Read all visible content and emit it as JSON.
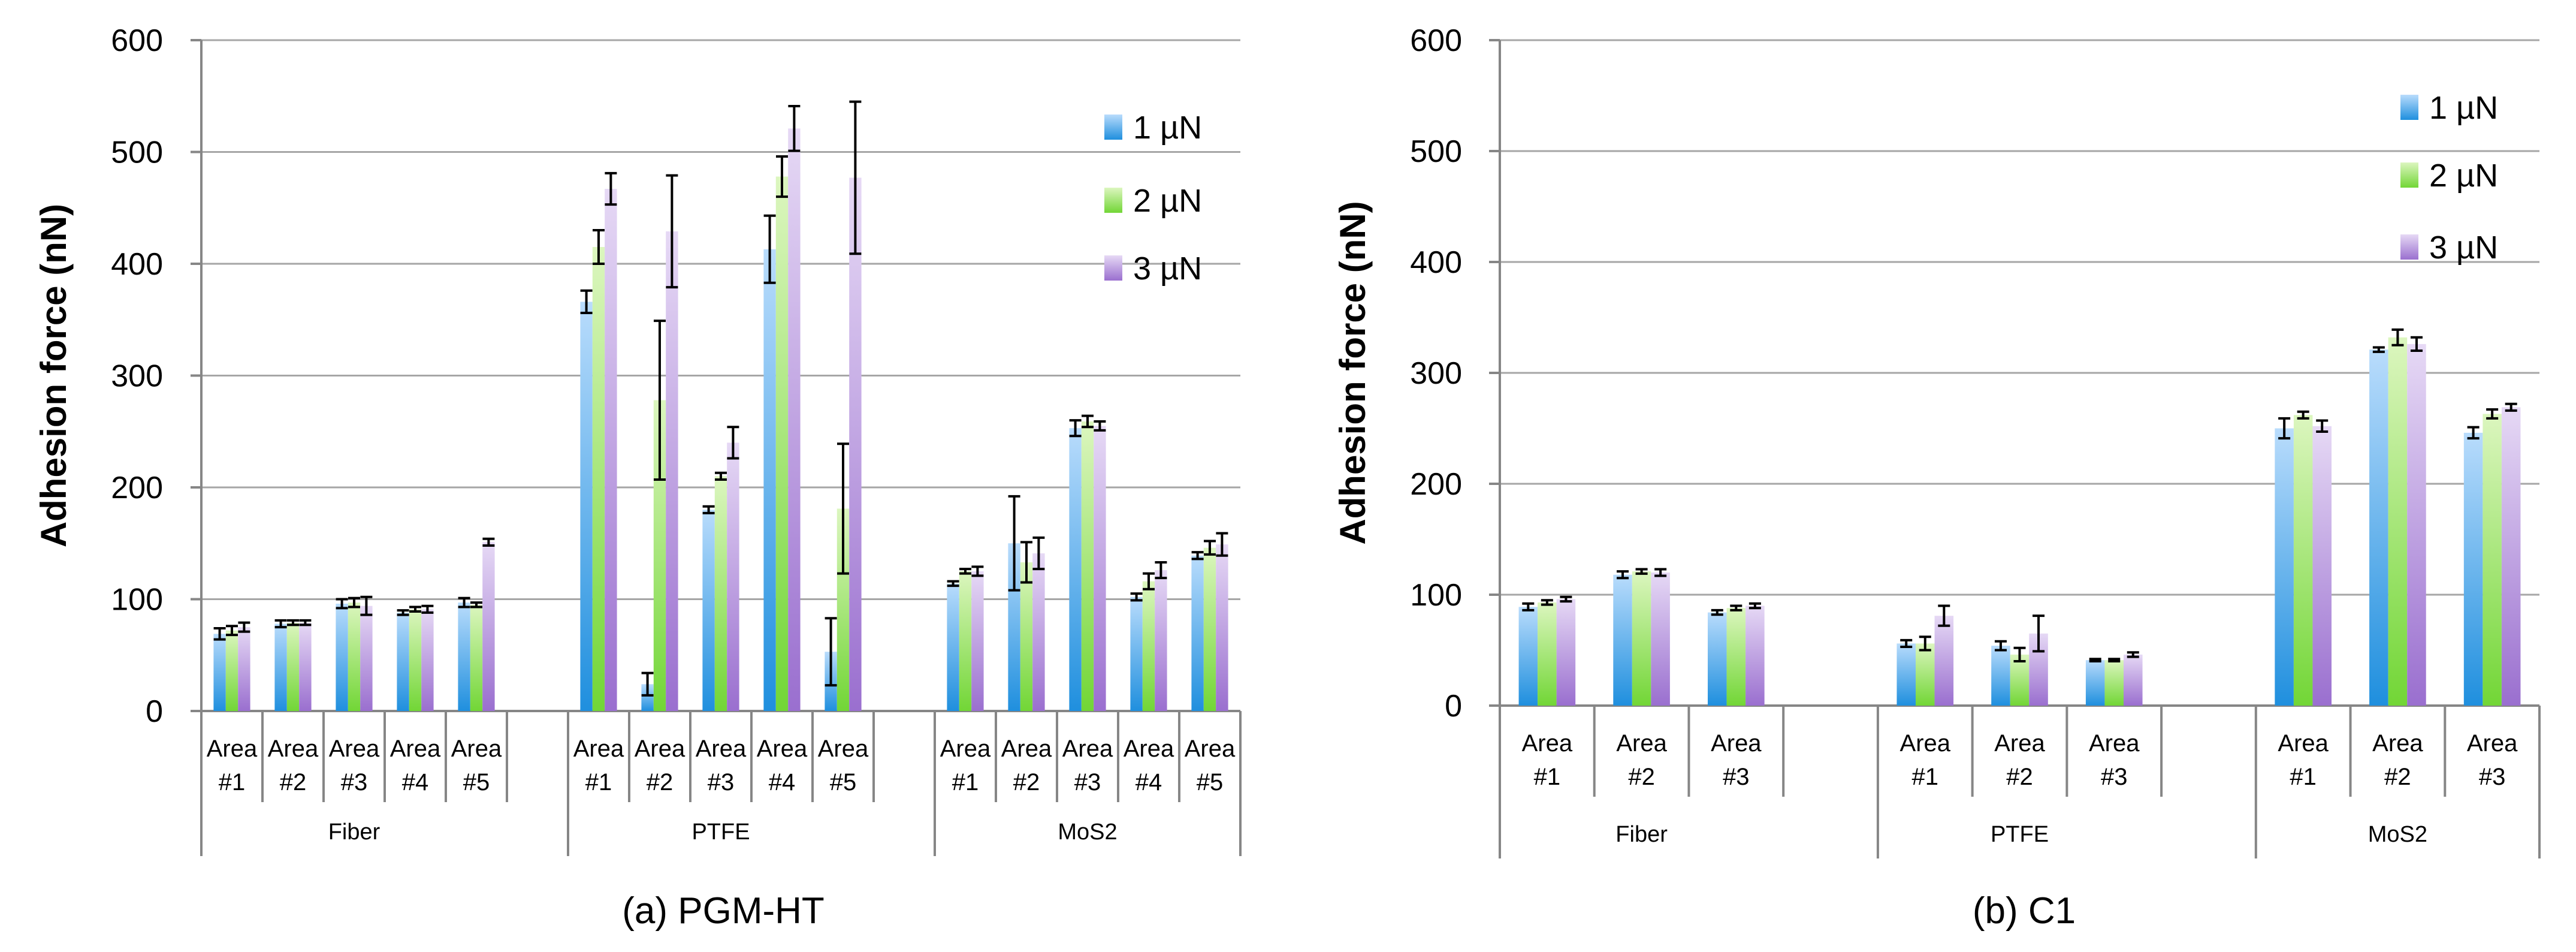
{
  "colors": {
    "series": [
      {
        "top": "#b9dcfc",
        "bottom": "#1f8fde"
      },
      {
        "top": "#dcf6bf",
        "bottom": "#72d636"
      },
      {
        "top": "#e6d9f5",
        "bottom": "#9a6fcf"
      }
    ]
  },
  "chart_data": [
    {
      "type": "bar",
      "caption": "(a) PGM-HT",
      "ylabel": "Adhesion force (nN)",
      "ylim": [
        0,
        600
      ],
      "yticks": [
        0,
        100,
        200,
        300,
        400,
        500,
        600
      ],
      "legend": [
        "1 µN",
        "2 µN",
        "3 µN"
      ],
      "groups": [
        {
          "name": "Fiber",
          "areas": [
            {
              "label": [
                "Area",
                "#1"
              ],
              "values": [
                69,
                72,
                75
              ],
              "errors": [
                5,
                4,
                4
              ]
            },
            {
              "label": [
                "Area",
                "#2"
              ],
              "values": [
                78,
                79,
                79
              ],
              "errors": [
                3,
                2,
                2
              ]
            },
            {
              "label": [
                "Area",
                "#3"
              ],
              "values": [
                96,
                97,
                94
              ],
              "errors": [
                4,
                4,
                8
              ]
            },
            {
              "label": [
                "Area",
                "#4"
              ],
              "values": [
                88,
                91,
                91
              ],
              "errors": [
                2,
                2,
                3
              ]
            },
            {
              "label": [
                "Area",
                "#5"
              ],
              "values": [
                97,
                95,
                151
              ],
              "errors": [
                4,
                2,
                3
              ]
            }
          ]
        },
        {
          "name": "PTFE",
          "areas": [
            {
              "label": [
                "Area",
                "#1"
              ],
              "values": [
                366,
                415,
                467
              ],
              "errors": [
                10,
                15,
                14
              ]
            },
            {
              "label": [
                "Area",
                "#2"
              ],
              "values": [
                24,
                278,
                429
              ],
              "errors": [
                10,
                71,
                50
              ]
            },
            {
              "label": [
                "Area",
                "#3"
              ],
              "values": [
                180,
                210,
                240
              ],
              "errors": [
                3,
                3,
                14
              ]
            },
            {
              "label": [
                "Area",
                "#4"
              ],
              "values": [
                413,
                478,
                521
              ],
              "errors": [
                30,
                18,
                20
              ]
            },
            {
              "label": [
                "Area",
                "#5"
              ],
              "values": [
                53,
                181,
                477
              ],
              "errors": [
                30,
                58,
                68
              ]
            }
          ]
        },
        {
          "name": "MoS2",
          "areas": [
            {
              "label": [
                "Area",
                "#1"
              ],
              "values": [
                114,
                125,
                125
              ],
              "errors": [
                2,
                2,
                4
              ]
            },
            {
              "label": [
                "Area",
                "#2"
              ],
              "values": [
                150,
                133,
                141
              ],
              "errors": [
                42,
                18,
                14
              ]
            },
            {
              "label": [
                "Area",
                "#3"
              ],
              "values": [
                253,
                259,
                255
              ],
              "errors": [
                7,
                5,
                4
              ]
            },
            {
              "label": [
                "Area",
                "#4"
              ],
              "values": [
                102,
                116,
                126
              ],
              "errors": [
                3,
                7,
                7
              ]
            },
            {
              "label": [
                "Area",
                "#5"
              ],
              "values": [
                139,
                146,
                149
              ],
              "errors": [
                3,
                6,
                10
              ]
            }
          ]
        }
      ]
    },
    {
      "type": "bar",
      "caption": "(b) C1",
      "ylabel": "Adhesion force (nN)",
      "ylim": [
        0,
        600
      ],
      "yticks": [
        0,
        100,
        200,
        300,
        400,
        500,
        600
      ],
      "legend": [
        "1 µN",
        "2 µN",
        "3 µN"
      ],
      "groups": [
        {
          "name": "Fiber",
          "areas": [
            {
              "label": [
                "Area",
                "#1"
              ],
              "values": [
                89,
                93,
                96
              ],
              "errors": [
                3,
                2,
                2
              ]
            },
            {
              "label": [
                "Area",
                "#2"
              ],
              "values": [
                118,
                121,
                120
              ],
              "errors": [
                3,
                2,
                3
              ]
            },
            {
              "label": [
                "Area",
                "#3"
              ],
              "values": [
                84,
                88,
                90
              ],
              "errors": [
                2,
                2,
                2
              ]
            }
          ]
        },
        {
          "name": "PTFE",
          "areas": [
            {
              "label": [
                "Area",
                "#1"
              ],
              "values": [
                56,
                56,
                81
              ],
              "errors": [
                3,
                6,
                9
              ]
            },
            {
              "label": [
                "Area",
                "#2"
              ],
              "values": [
                54,
                46,
                65
              ],
              "errors": [
                4,
                6,
                16
              ]
            },
            {
              "label": [
                "Area",
                "#3"
              ],
              "values": [
                41,
                41,
                46
              ],
              "errors": [
                1,
                1,
                2
              ]
            }
          ]
        },
        {
          "name": "MoS2",
          "areas": [
            {
              "label": [
                "Area",
                "#1"
              ],
              "values": [
                250,
                262,
                252
              ],
              "errors": [
                9,
                3,
                5
              ]
            },
            {
              "label": [
                "Area",
                "#2"
              ],
              "values": [
                321,
                332,
                326
              ],
              "errors": [
                2,
                7,
                6
              ]
            },
            {
              "label": [
                "Area",
                "#3"
              ],
              "values": [
                246,
                263,
                269
              ],
              "errors": [
                5,
                4,
                3
              ]
            }
          ]
        }
      ]
    }
  ]
}
